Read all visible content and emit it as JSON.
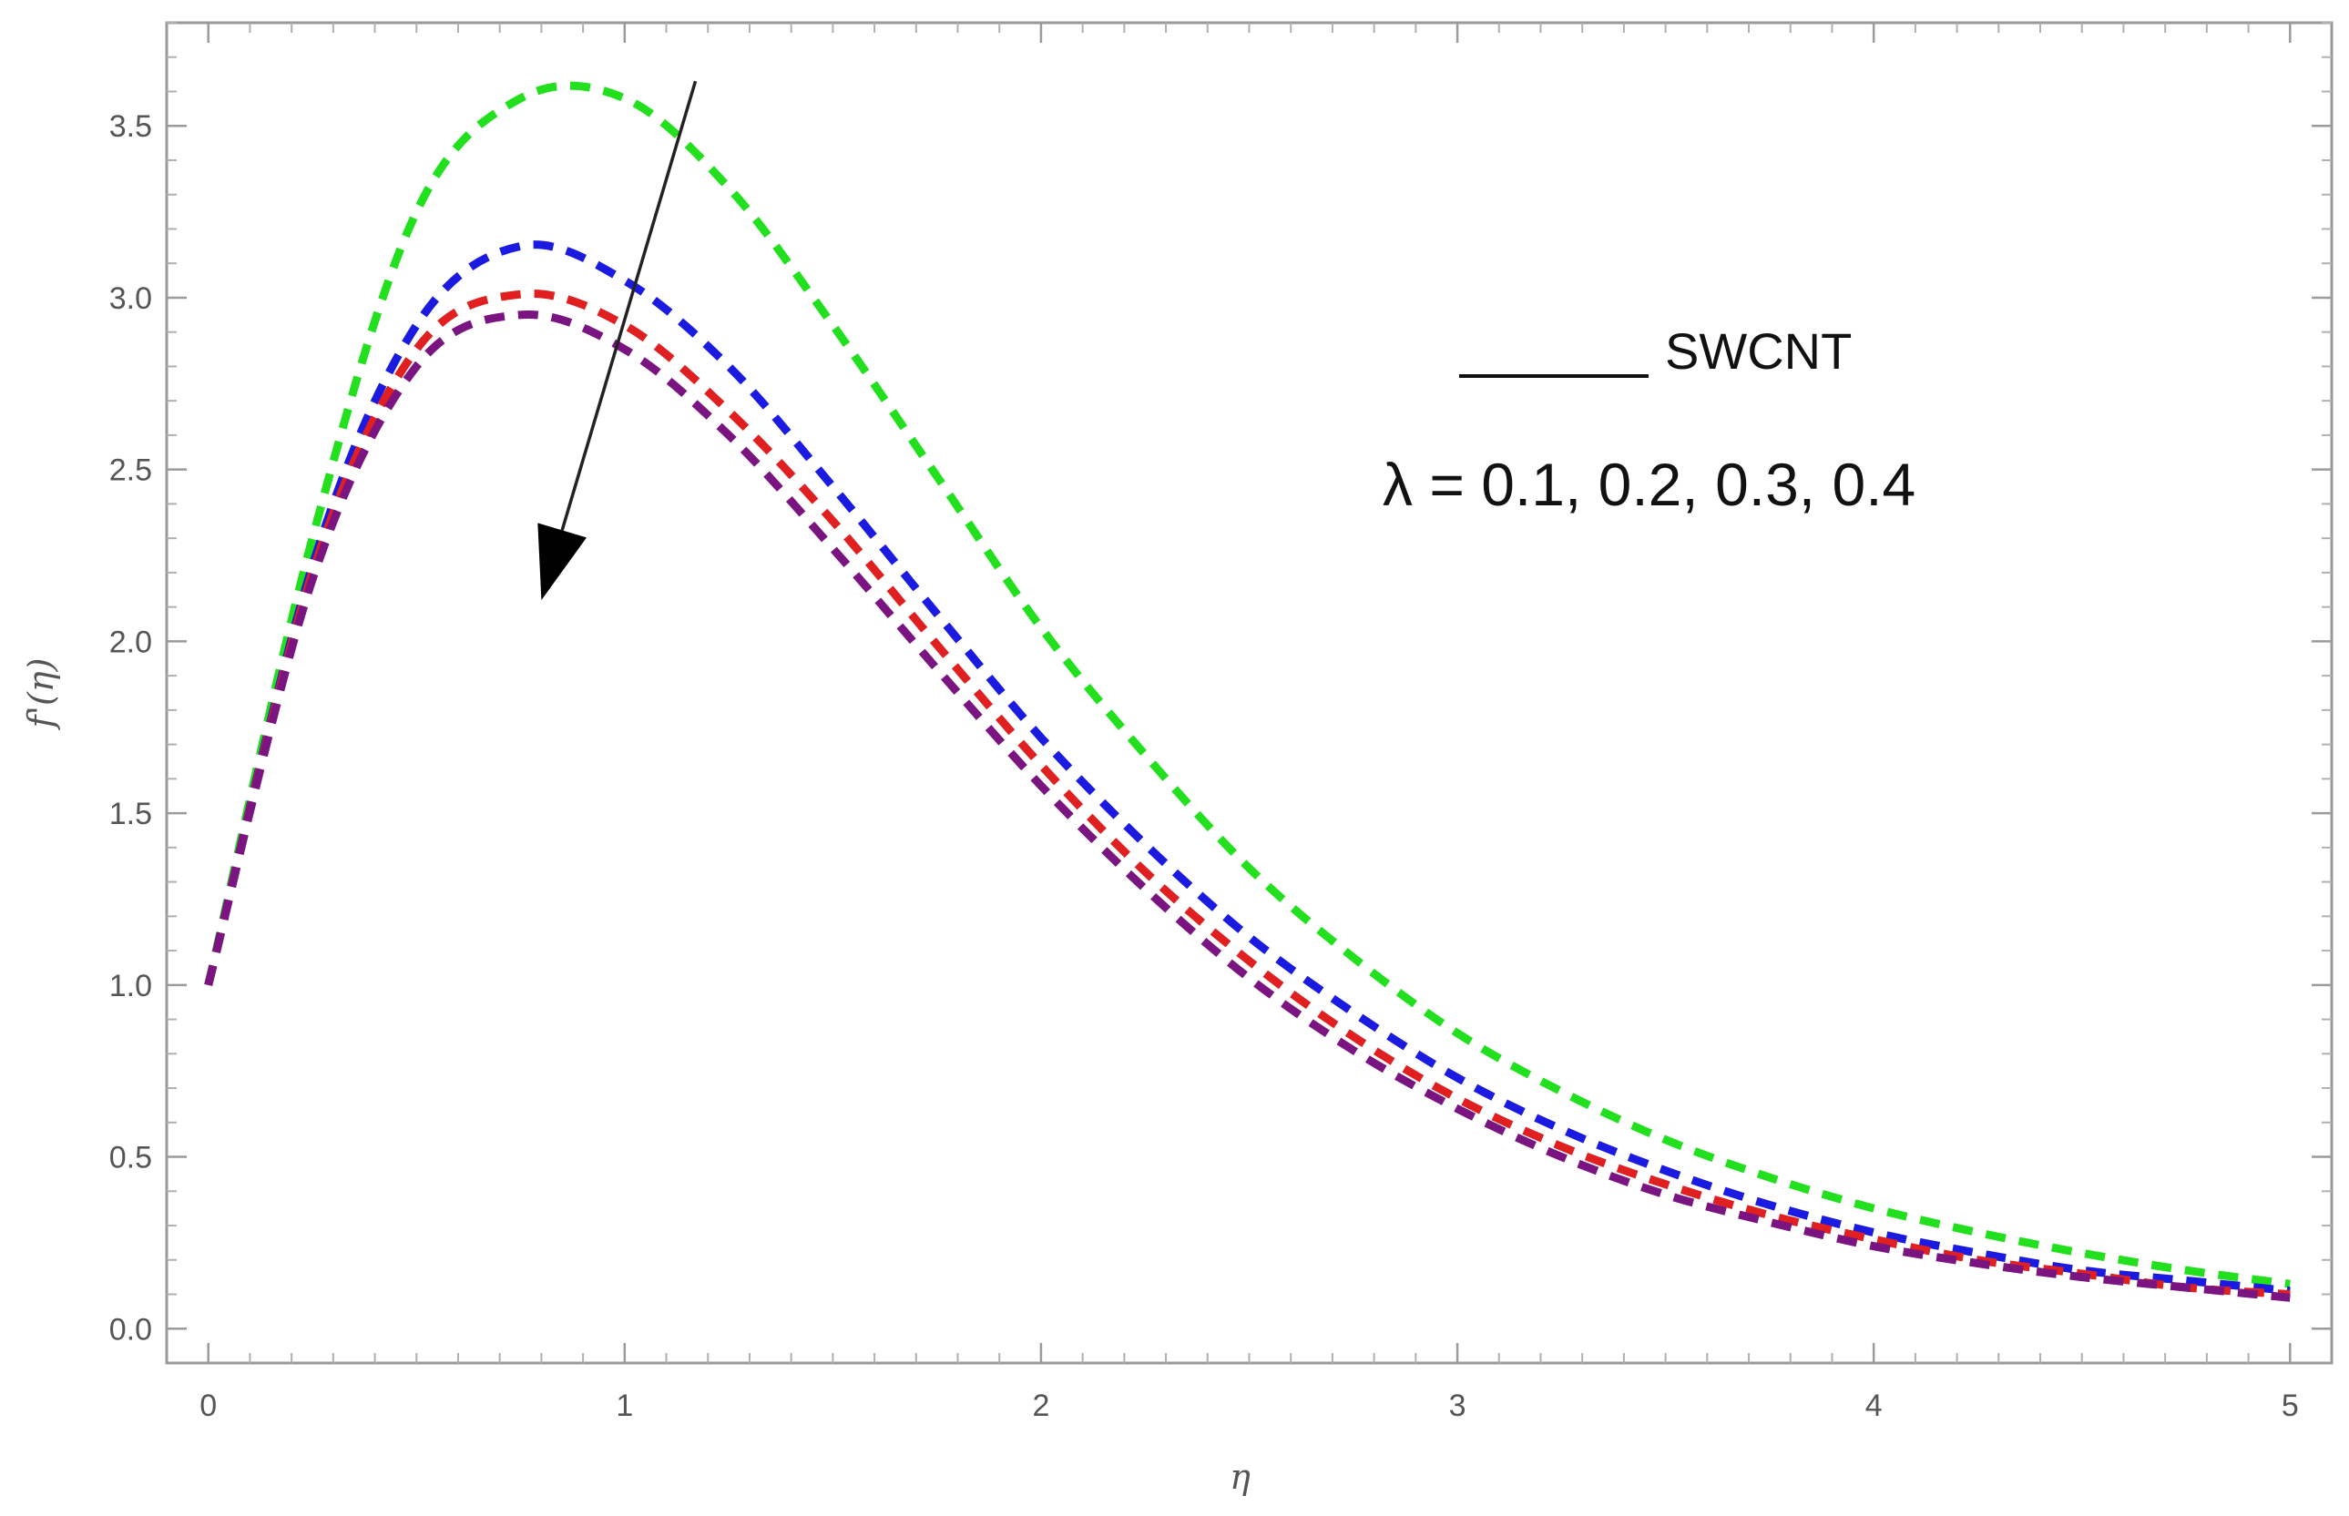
{
  "chart_data": {
    "type": "line",
    "title": "",
    "xlabel": "η",
    "ylabel": "f'(η)",
    "xlim": [
      -0.1,
      5.1
    ],
    "ylim": [
      -0.1,
      3.8
    ],
    "x_ticks": [
      0,
      1,
      2,
      3,
      4,
      5
    ],
    "y_ticks": [
      0.0,
      0.5,
      1.0,
      1.5,
      2.0,
      2.5,
      3.0,
      3.5
    ],
    "x_tick_labels": [
      "0",
      "1",
      "2",
      "3",
      "4",
      "5"
    ],
    "y_tick_labels": [
      "0.0",
      "0.5",
      "1.0",
      "1.5",
      "2.0",
      "2.5",
      "3.0",
      "3.5"
    ],
    "legend_label": "SWCNT",
    "annotation": "λ = 0.1, 0.2, 0.3, 0.4",
    "arrow": {
      "from": [
        1.17,
        3.63
      ],
      "to": [
        0.8,
        2.12
      ],
      "meaning": "increasing λ"
    },
    "x": [
      0,
      0.25,
      0.5,
      0.75,
      1.0,
      1.25,
      1.5,
      1.75,
      2.0,
      2.25,
      2.5,
      2.75,
      3.0,
      3.25,
      3.5,
      3.75,
      4.0,
      4.25,
      4.5,
      4.75,
      5.0
    ],
    "series": [
      {
        "name": "λ = 0.1",
        "color": "#22e01e",
        "values": [
          1.0,
          2.3,
          3.25,
          3.58,
          3.58,
          3.32,
          2.92,
          2.48,
          2.04,
          1.67,
          1.34,
          1.08,
          0.86,
          0.69,
          0.55,
          0.44,
          0.35,
          0.28,
          0.22,
          0.17,
          0.13
        ]
      },
      {
        "name": "λ = 0.2",
        "color": "#1a1ae0",
        "values": [
          1.0,
          2.22,
          2.92,
          3.15,
          3.05,
          2.8,
          2.45,
          2.08,
          1.72,
          1.41,
          1.14,
          0.92,
          0.73,
          0.58,
          0.46,
          0.36,
          0.28,
          0.22,
          0.17,
          0.14,
          0.11
        ]
      },
      {
        "name": "λ = 0.3",
        "color": "#e02020",
        "values": [
          1.0,
          2.2,
          2.85,
          3.01,
          2.92,
          2.67,
          2.35,
          1.99,
          1.64,
          1.33,
          1.07,
          0.85,
          0.67,
          0.53,
          0.42,
          0.33,
          0.26,
          0.2,
          0.16,
          0.12,
          0.1
        ]
      },
      {
        "name": "λ = 0.4",
        "color": "#7a1480",
        "values": [
          1.0,
          2.18,
          2.8,
          2.95,
          2.85,
          2.6,
          2.27,
          1.92,
          1.58,
          1.28,
          1.02,
          0.81,
          0.64,
          0.5,
          0.39,
          0.31,
          0.24,
          0.19,
          0.15,
          0.12,
          0.09
        ]
      }
    ]
  }
}
